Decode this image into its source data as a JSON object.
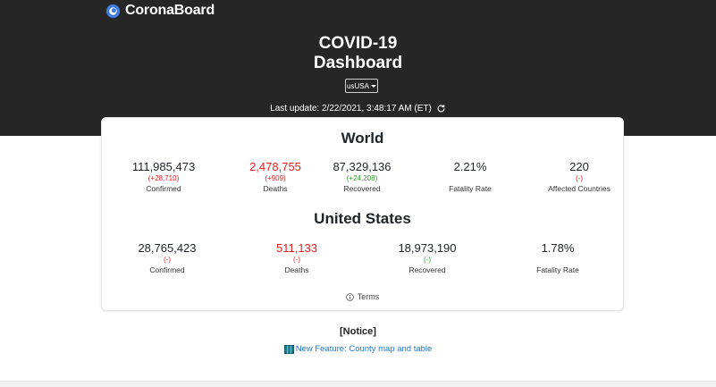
{
  "brand": {
    "name": "CoronaBoard"
  },
  "header": {
    "title_line1": "COVID-19",
    "title_line2": "Dashboard",
    "country_select": "usUSA",
    "last_update": "Last update: 2/22/2021, 3:48:17 AM (ET)"
  },
  "world": {
    "title": "World",
    "stats": [
      {
        "value": "111,985,473",
        "change": "(+28,710)",
        "label": "Confirmed"
      },
      {
        "value": "2,478,755",
        "change": "(+909)",
        "label": "Deaths"
      },
      {
        "value": "87,329,136",
        "change": "(+24,208)",
        "label": "Recovered"
      },
      {
        "value": "2.21%",
        "change": "",
        "label": "Fatality Rate"
      },
      {
        "value": "220",
        "change": "(-)",
        "label": "Affected Countries"
      }
    ]
  },
  "us": {
    "title": "United States",
    "stats": [
      {
        "value": "28,765,423",
        "change": "(-)",
        "label": "Confirmed"
      },
      {
        "value": "511,133",
        "change": "(-)",
        "label": "Deaths"
      },
      {
        "value": "18,973,190",
        "change": "(-)",
        "label": "Recovered"
      },
      {
        "value": "1.78%",
        "change": "",
        "label": "Fatality Rate"
      }
    ]
  },
  "terms": {
    "label": "Terms"
  },
  "notice": {
    "title": "[Notice]",
    "link": "New Feature: County map and table"
  },
  "colors": {
    "header_bg": "#262626",
    "deaths_red": "#e02020",
    "recovered_green": "#2e9e2e",
    "link_blue": "#1f78c8"
  }
}
